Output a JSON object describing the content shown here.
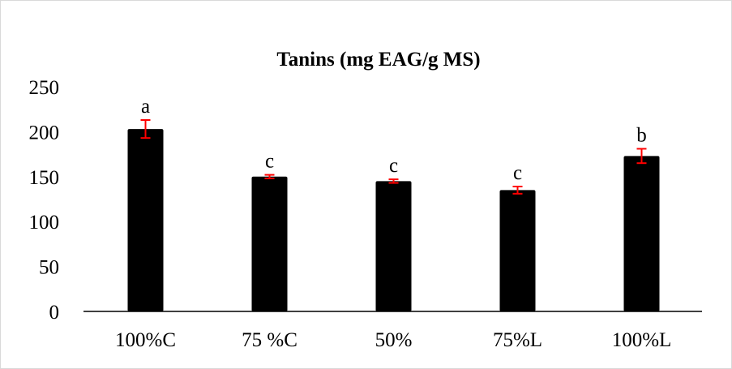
{
  "chart_data": {
    "type": "bar",
    "title": "Tanins (mg EAG/g MS)",
    "xlabel": "",
    "ylabel": "",
    "categories": [
      "100%C",
      "75 %C",
      "50%",
      "75%L",
      "100%L"
    ],
    "values": [
      203,
      150,
      145,
      135,
      173
    ],
    "errors": [
      10,
      2,
      2,
      4,
      8
    ],
    "significance_labels": [
      "a",
      "c",
      "c",
      "c",
      "b"
    ],
    "ylim": [
      0,
      250
    ],
    "yticks": [
      0,
      50,
      100,
      150,
      200,
      250
    ],
    "ytick_labels": [
      "0",
      "50",
      "100",
      "150",
      "200",
      "250"
    ],
    "grid": false,
    "legend": "none",
    "colors": {
      "bar": "#000000",
      "error_bar": "#ff0000",
      "axis": "#000000",
      "frame": "#d9d9d9"
    }
  }
}
